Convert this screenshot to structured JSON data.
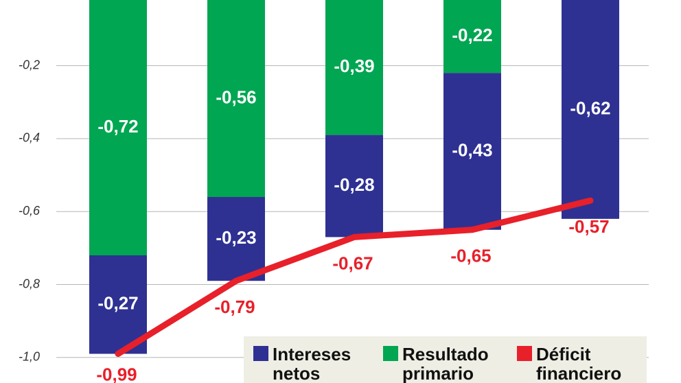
{
  "chart_data": {
    "type": "stacked-bar-line",
    "categories": [
      null,
      null,
      null,
      null,
      null
    ],
    "series": [
      {
        "name": "Intereses netos",
        "color": "#2e3192",
        "kind": "bar",
        "values": [
          -0.27,
          -0.23,
          -0.28,
          -0.43,
          -0.62
        ],
        "value_labels": [
          "-0,27",
          "-0,23",
          "-0,28",
          "-0,43",
          "-0,62"
        ]
      },
      {
        "name": "Resultado primario",
        "color": "#00a651",
        "kind": "bar",
        "values": [
          -0.72,
          -0.56,
          -0.39,
          -0.22,
          null
        ],
        "value_labels": [
          "-0,72",
          "-0,56",
          "-0,39",
          "-0,22",
          null
        ]
      },
      {
        "name": "Déficit financiero",
        "color": "#e8202a",
        "kind": "line",
        "values": [
          -0.99,
          -0.79,
          -0.67,
          -0.65,
          -0.57
        ],
        "value_labels": [
          "-0,99",
          "-0,79",
          "-0,67",
          "-0,65",
          "-0,57"
        ]
      }
    ],
    "ylim": [
      -1.07,
      -0.02
    ],
    "yticks": [
      {
        "value": -0.2,
        "label": "-0,2"
      },
      {
        "value": -0.4,
        "label": "-0,4"
      },
      {
        "value": -0.6,
        "label": "-0,6"
      },
      {
        "value": -0.8,
        "label": "-0,8"
      },
      {
        "value": -1.0,
        "label": "-1,0"
      }
    ],
    "grid": true,
    "legend": "lower right"
  }
}
